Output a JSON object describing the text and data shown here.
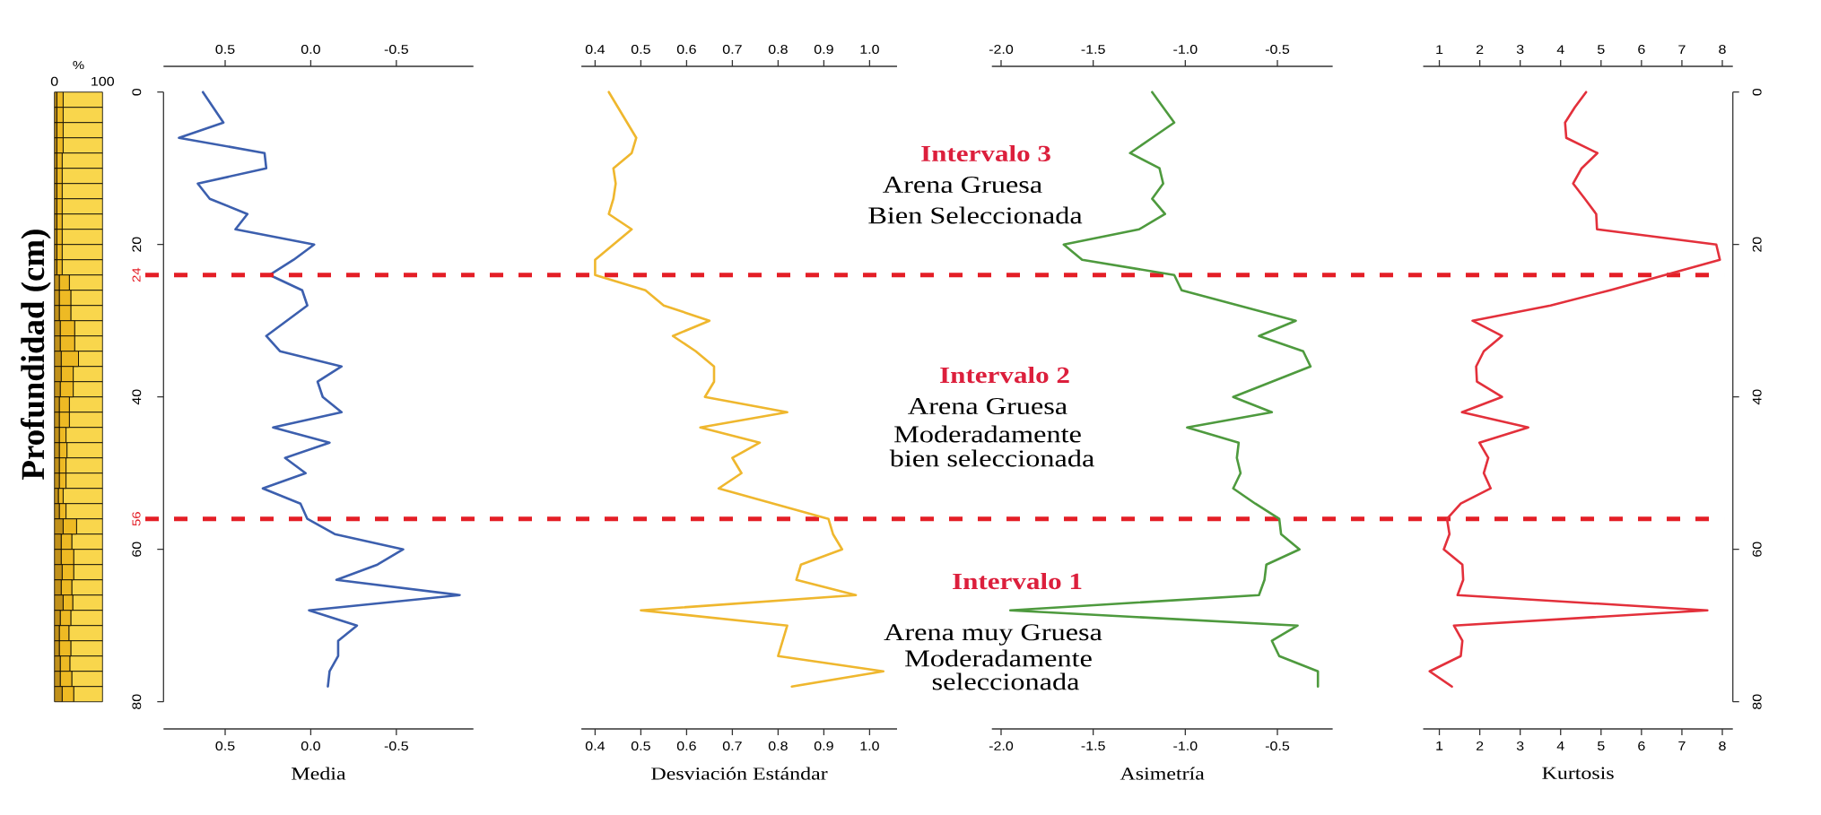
{
  "chart_data": [
    {
      "type": "bar",
      "orientation": "horizontal",
      "stacked": true,
      "xlabel": "%",
      "ylabel": "Profundidad (cm)",
      "categories": [
        null,
        null,
        null,
        null,
        null,
        null,
        null,
        null,
        null,
        null,
        null,
        null,
        null,
        null,
        null,
        null,
        null,
        null,
        null,
        null,
        null,
        null,
        null,
        null,
        null,
        null,
        null,
        null,
        null,
        null,
        null,
        null,
        null,
        null,
        null,
        null,
        null,
        null,
        null,
        null
      ],
      "series": [
        {
          "color": "#c0901a",
          "values": [
            5,
            5,
            5,
            5,
            5,
            5,
            5,
            5,
            5,
            5,
            5,
            5,
            10,
            10,
            10,
            12,
            12,
            14,
            14,
            12,
            10,
            10,
            10,
            10,
            10,
            10,
            8,
            10,
            18,
            14,
            14,
            16,
            14,
            18,
            12,
            10,
            10,
            12,
            12,
            16
          ]
        },
        {
          "color": "#eeba24",
          "values": [
            13,
            13,
            13,
            13,
            11,
            11,
            11,
            11,
            11,
            11,
            11,
            11,
            21,
            24,
            24,
            30,
            30,
            36,
            25,
            27,
            21,
            21,
            14,
            16,
            14,
            14,
            10,
            14,
            28,
            22,
            26,
            24,
            22,
            20,
            22,
            20,
            24,
            20,
            24,
            24
          ]
        },
        {
          "color": "#f9d64c",
          "values": [
            82,
            82,
            82,
            82,
            84,
            84,
            84,
            84,
            84,
            84,
            84,
            84,
            69,
            66,
            66,
            58,
            58,
            50,
            61,
            61,
            69,
            69,
            76,
            74,
            76,
            76,
            82,
            76,
            54,
            64,
            60,
            60,
            64,
            62,
            66,
            70,
            66,
            68,
            64,
            60
          ]
        }
      ],
      "xlim": [
        0,
        100
      ],
      "xticks": [
        0,
        100
      ],
      "tick_labels": "x"
    },
    {
      "type": "line",
      "xlabel": "Media",
      "color": "#3c5fae",
      "x": [
        0.63,
        0.57,
        0.51,
        0.77,
        0.27,
        0.26,
        0.66,
        0.59,
        0.37,
        0.44,
        -0.02,
        0.1,
        0.24,
        0.05,
        0.02,
        0.14,
        0.26,
        0.18,
        -0.18,
        -0.04,
        -0.07,
        -0.18,
        0.22,
        -0.11,
        0.15,
        0.03,
        0.28,
        0.06,
        0.02,
        -0.14,
        -0.54,
        -0.39,
        -0.15,
        -0.87,
        0.01,
        -0.27,
        -0.16,
        -0.16,
        -0.11,
        -0.1
      ],
      "values": [
        0,
        2,
        4,
        6,
        8,
        10,
        12,
        14,
        16,
        18,
        20,
        22,
        24,
        26,
        28,
        30,
        32,
        34,
        36,
        38,
        40,
        42,
        44,
        46,
        48,
        50,
        52,
        54,
        56,
        58,
        60,
        62,
        64,
        66,
        68,
        70,
        72,
        74,
        76,
        78
      ],
      "xlim": [
        0.86,
        -0.95
      ],
      "xticks": [
        0.5,
        {
          "value": 0,
          "label": "0.0"
        },
        -0.5
      ],
      "x2lim": [
        0.86,
        -0.95
      ],
      "x2ticks": [
        0.5,
        {
          "value": 0,
          "label": "0.0"
        },
        -0.5
      ],
      "ylim": [
        80,
        0
      ],
      "yticks": [
        0,
        20,
        40,
        60,
        80
      ],
      "ref_lines": [
        {
          "axis": "y",
          "value": 24,
          "label": "24",
          "color": "#e41e26",
          "line_style": "dashed"
        },
        {
          "axis": "y",
          "value": 56,
          "label": "56",
          "color": "#e41e26",
          "line_style": "dashed"
        }
      ]
    },
    {
      "type": "line",
      "xlabel": "Desviación Estándar",
      "color": "#efb72e",
      "x": [
        0.43,
        0.45,
        0.47,
        0.49,
        0.48,
        0.44,
        0.445,
        0.44,
        0.43,
        0.48,
        0.44,
        0.4,
        0.4,
        0.51,
        0.55,
        0.65,
        0.57,
        0.62,
        0.66,
        0.66,
        0.64,
        0.82,
        0.63,
        0.76,
        0.7,
        0.72,
        0.67,
        0.79,
        0.91,
        0.92,
        0.94,
        0.85,
        0.84,
        0.97,
        0.5,
        0.82,
        0.81,
        0.8,
        1.03,
        0.83
      ],
      "values": [
        0,
        2,
        4,
        6,
        8,
        10,
        12,
        14,
        16,
        18,
        20,
        22,
        24,
        26,
        28,
        30,
        32,
        34,
        36,
        38,
        40,
        42,
        44,
        46,
        48,
        50,
        52,
        54,
        56,
        58,
        60,
        62,
        64,
        66,
        68,
        70,
        72,
        74,
        76,
        78
      ],
      "xlim": [
        0.37,
        1.06
      ],
      "xticks": [
        0.4,
        0.5,
        0.6,
        0.7,
        0.8,
        0.9,
        {
          "value": 1,
          "label": "1.0"
        }
      ],
      "x2lim": [
        0.37,
        1.06
      ],
      "x2ticks": [
        0.4,
        0.5,
        0.6,
        0.7,
        0.8,
        0.9,
        {
          "value": 1,
          "label": "1.0"
        }
      ],
      "ylim": [
        80,
        0
      ],
      "tick_labels": "x"
    },
    {
      "type": "line",
      "xlabel": "Asimetría",
      "color": "#4e9a3e",
      "x": [
        -1.18,
        -1.12,
        -1.06,
        -1.18,
        -1.3,
        -1.14,
        -1.12,
        -1.18,
        -1.11,
        -1.25,
        -1.66,
        -1.56,
        -1.06,
        -1.02,
        -0.71,
        -0.4,
        -0.6,
        -0.36,
        -0.32,
        -0.53,
        -0.74,
        -0.53,
        -0.99,
        -0.71,
        -0.72,
        -0.7,
        -0.74,
        -0.62,
        -0.49,
        -0.48,
        -0.38,
        -0.56,
        -0.57,
        -0.6,
        -1.95,
        -0.39,
        -0.53,
        -0.49,
        -0.28,
        -0.28
      ],
      "values": [
        0,
        2,
        4,
        6,
        8,
        10,
        12,
        14,
        16,
        18,
        20,
        22,
        24,
        26,
        28,
        30,
        32,
        34,
        36,
        38,
        40,
        42,
        44,
        46,
        48,
        50,
        52,
        54,
        56,
        58,
        60,
        62,
        64,
        66,
        68,
        70,
        72,
        74,
        76,
        78
      ],
      "xlim": [
        -2.05,
        -0.2
      ],
      "xticks": [
        {
          "value": -2,
          "label": "-2.0"
        },
        -1.5,
        {
          "value": -1,
          "label": "-1.0"
        },
        -0.5
      ],
      "x2lim": [
        -2.05,
        -0.2
      ],
      "x2ticks": [
        {
          "value": -2,
          "label": "-2.0"
        },
        -1.5,
        {
          "value": -1,
          "label": "-1.0"
        },
        -0.5
      ],
      "ylim": [
        80,
        0
      ],
      "tick_labels": "x",
      "annotations": [
        "Intervalo 3",
        "Arena Gruesa",
        "Bien Seleccionada",
        "Intervalo 2",
        "Arena Gruesa",
        "Moderadamente",
        "bien seleccionada",
        "Intervalo 1",
        "Arena muy Gruesa",
        "Moderadamente",
        "seleccionada"
      ]
    },
    {
      "type": "line",
      "xlabel": "Kurtosis",
      "color": "#e3303b",
      "x": [
        4.63,
        4.35,
        4.11,
        4.14,
        4.91,
        4.52,
        4.31,
        4.6,
        4.88,
        4.9,
        7.85,
        7.94,
        6.58,
        5.22,
        3.75,
        1.82,
        2.55,
        2.1,
        1.91,
        1.93,
        2.55,
        1.56,
        3.2,
        1.99,
        2.21,
        2.1,
        2.27,
        1.53,
        1.19,
        1.25,
        1.11,
        1.57,
        1.59,
        1.45,
        7.63,
        1.36,
        1.57,
        1.53,
        0.76,
        1.31
      ],
      "values": [
        0,
        2,
        4,
        6,
        8,
        10,
        12,
        14,
        16,
        18,
        20,
        22,
        24,
        26,
        28,
        30,
        32,
        34,
        36,
        38,
        40,
        42,
        44,
        46,
        48,
        50,
        52,
        54,
        56,
        58,
        60,
        62,
        64,
        66,
        68,
        70,
        72,
        74,
        76,
        78
      ],
      "xlim": [
        0.6,
        8.26
      ],
      "xticks": [
        1,
        2,
        3,
        4,
        5,
        6,
        7,
        8
      ],
      "x2lim": [
        0.6,
        8.26
      ],
      "x2ticks": [
        1,
        2,
        3,
        4,
        5,
        6,
        7,
        8
      ],
      "ylim": [
        80,
        0
      ],
      "yticks": [
        0,
        20,
        40,
        60,
        80
      ]
    }
  ]
}
